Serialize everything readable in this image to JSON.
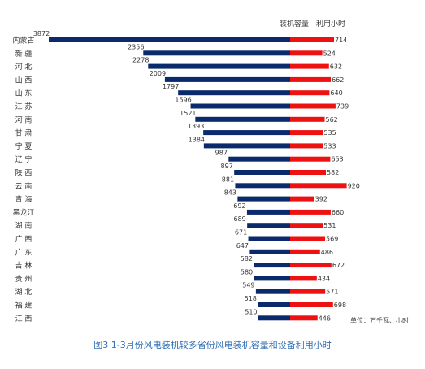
{
  "chart_data": {
    "type": "bar",
    "layout": "diverging-horizontal-bar",
    "series": [
      {
        "name": "装机容量",
        "color": "#0b2a6b",
        "direction": "left",
        "values": [
          3872,
          2356,
          2278,
          2009,
          1797,
          1596,
          1521,
          1393,
          1384,
          987,
          897,
          881,
          843,
          692,
          689,
          671,
          647,
          582,
          580,
          549,
          518,
          510
        ]
      },
      {
        "name": "利用小时",
        "color": "#ee1111",
        "direction": "right",
        "values": [
          714,
          524,
          632,
          662,
          640,
          739,
          562,
          535,
          533,
          653,
          582,
          920,
          392,
          660,
          531,
          569,
          486,
          672,
          434,
          571,
          698,
          446
        ]
      }
    ],
    "categories": [
      "内蒙古",
      "新 疆",
      "河 北",
      "山 西",
      "山 东",
      "江 苏",
      "河 南",
      "甘 肃",
      "宁 夏",
      "辽 宁",
      "陕 西",
      "云 南",
      "青 海",
      "黑龙江",
      "湖 南",
      "广 西",
      "广 东",
      "吉 林",
      "贵 州",
      "湖 北",
      "福 建",
      "江 西"
    ],
    "unit_note": "单位：万千瓦、小时",
    "xlabel": "",
    "ylabel": "",
    "legend_position": "top"
  },
  "caption": "图3  1-3月份风电装机较多省份风电装机容量和设备利用小时"
}
